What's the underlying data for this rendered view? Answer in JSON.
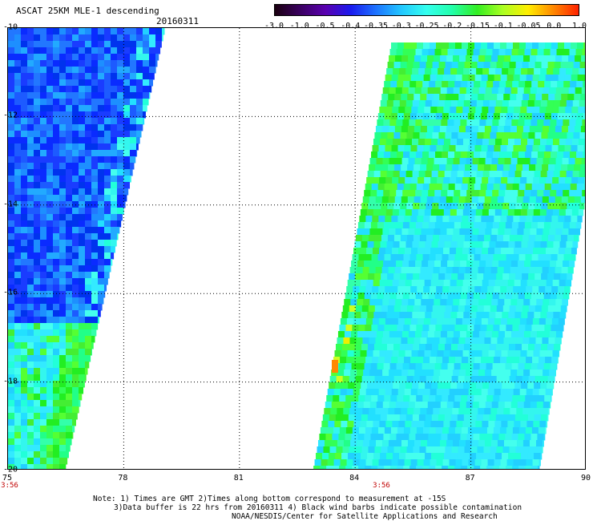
{
  "header": {
    "title": "ASCAT 25KM MLE-1 descending",
    "date": "20160311"
  },
  "colorbar": {
    "labels": [
      "-3.0",
      "-1.0",
      "-0.5",
      "-0.4",
      "-0.35",
      "-0.3",
      "-0.25",
      "-0.2",
      "-0.15",
      "-0.1",
      "-0.05",
      "0.0",
      "1.0"
    ],
    "colors": [
      "#1a0010",
      "#3a0060",
      "#5a00b0",
      "#1a1aee",
      "#1d73ff",
      "#22c7ff",
      "#33ffee",
      "#22ffaa",
      "#33ee22",
      "#aaff22",
      "#ffee00",
      "#ff8800",
      "#ff2200"
    ]
  },
  "axes": {
    "lat_labels": [
      "-10",
      "-12",
      "-14",
      "-16",
      "-18",
      "-20"
    ],
    "lon_labels": [
      "75",
      "78",
      "81",
      "84",
      "87",
      "90"
    ],
    "time_labels": [
      "3:56",
      "3:56"
    ]
  },
  "notes": {
    "line1": "Note: 1) Times are GMT 2)Times along bottom correspond to measurement at -15S",
    "line2": "3)Data buffer is 22 hrs from 20160311 4) Black wind barbs indicate possible contamination",
    "line3": "NOAA/NESDIS/Center for Satellite Applications and Research"
  }
}
